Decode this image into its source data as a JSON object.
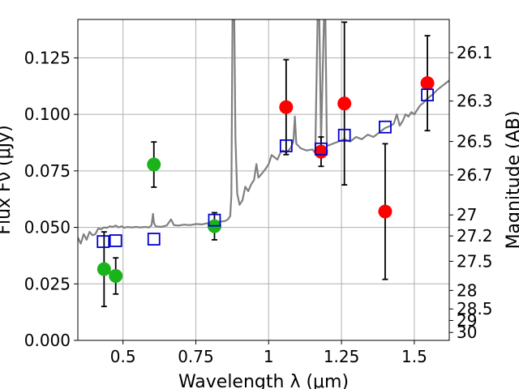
{
  "chart_data": {
    "type": "scatter",
    "title": "",
    "xlabel": "Wavelength  λ (μm)",
    "ylabel_left": "Flux  Fν (μJy)",
    "ylabel_right": "Magnitude (AB)",
    "xlim": [
      0.345,
      1.62
    ],
    "ylim": [
      0.0,
      0.142
    ],
    "grid": true,
    "x_ticks": [
      0.5,
      0.75,
      1.0,
      1.25,
      1.5
    ],
    "x_tick_labels": [
      "0.5",
      "0.75",
      "1",
      "1.25",
      "1.5"
    ],
    "y_ticks": [
      0.0,
      0.025,
      0.05,
      0.075,
      0.1,
      0.125
    ],
    "y_tick_labels": [
      "0.000",
      "0.025",
      "0.050",
      "0.075",
      "0.100",
      "0.125"
    ],
    "right_ticks": [
      {
        "label": "26.1",
        "flux": 0.1273
      },
      {
        "label": "26.3",
        "flux": 0.1059
      },
      {
        "label": "26.5",
        "flux": 0.088
      },
      {
        "label": "26.7",
        "flux": 0.0732
      },
      {
        "label": "27",
        "flux": 0.0555
      },
      {
        "label": "27.2",
        "flux": 0.0462
      },
      {
        "label": "27.5",
        "flux": 0.035
      },
      {
        "label": "28",
        "flux": 0.0221
      },
      {
        "label": "28.5",
        "flux": 0.0139
      },
      {
        "label": "29",
        "flux": 0.0088
      },
      {
        "label": "30",
        "flux": 0.0035
      }
    ],
    "colors": {
      "spectrum": "#808080",
      "green": "#1ab31a",
      "red": "#ff0000",
      "model": "#0000cc",
      "errorbar": "#000000",
      "grid": "#b0b0b0"
    },
    "series": [
      {
        "marker": "circle",
        "color": "#1ab31a",
        "points": [
          {
            "x": 0.435,
            "y": 0.0315,
            "yerr_low": 0.0165,
            "yerr_high": 0.0165
          },
          {
            "x": 0.475,
            "y": 0.0285,
            "yerr_low": 0.008,
            "yerr_high": 0.008
          },
          {
            "x": 0.606,
            "y": 0.0778,
            "yerr_low": 0.01,
            "yerr_high": 0.01
          },
          {
            "x": 0.814,
            "y": 0.0505,
            "yerr_low": 0.006,
            "yerr_high": 0.006
          }
        ]
      },
      {
        "marker": "circle",
        "color": "#ff0000",
        "points": [
          {
            "x": 1.06,
            "y": 0.1032,
            "yerr_low": 0.021,
            "yerr_high": 0.021
          },
          {
            "x": 1.18,
            "y": 0.0835,
            "yerr_low": 0.0065,
            "yerr_high": 0.0065
          },
          {
            "x": 1.26,
            "y": 0.1048,
            "yerr_low": 0.036,
            "yerr_high": 0.036
          },
          {
            "x": 1.4,
            "y": 0.057,
            "yerr_low": 0.03,
            "yerr_high": 0.03
          },
          {
            "x": 1.545,
            "y": 0.1138,
            "yerr_low": 0.021,
            "yerr_high": 0.021
          }
        ]
      },
      {
        "marker": "open-square",
        "color": "#0000cc",
        "points": [
          {
            "x": 0.432,
            "y": 0.0437
          },
          {
            "x": 0.475,
            "y": 0.0441
          },
          {
            "x": 0.606,
            "y": 0.0448
          },
          {
            "x": 0.814,
            "y": 0.0532
          },
          {
            "x": 1.06,
            "y": 0.0861
          },
          {
            "x": 1.18,
            "y": 0.0847
          },
          {
            "x": 1.26,
            "y": 0.0908
          },
          {
            "x": 1.4,
            "y": 0.0944
          },
          {
            "x": 1.545,
            "y": 0.1086
          }
        ]
      },
      {
        "marker": "line",
        "color": "#808080",
        "points": [
          [
            0.345,
            0.0455
          ],
          [
            0.355,
            0.0428
          ],
          [
            0.365,
            0.047
          ],
          [
            0.375,
            0.0445
          ],
          [
            0.385,
            0.048
          ],
          [
            0.395,
            0.0465
          ],
          [
            0.405,
            0.047
          ],
          [
            0.415,
            0.0495
          ],
          [
            0.425,
            0.0492
          ],
          [
            0.435,
            0.05
          ],
          [
            0.445,
            0.0498
          ],
          [
            0.455,
            0.0505
          ],
          [
            0.465,
            0.0502
          ],
          [
            0.475,
            0.0508
          ],
          [
            0.485,
            0.05
          ],
          [
            0.495,
            0.0505
          ],
          [
            0.505,
            0.0498
          ],
          [
            0.515,
            0.0502
          ],
          [
            0.53,
            0.05
          ],
          [
            0.545,
            0.0502
          ],
          [
            0.56,
            0.05
          ],
          [
            0.575,
            0.0502
          ],
          [
            0.59,
            0.05
          ],
          [
            0.598,
            0.051
          ],
          [
            0.603,
            0.056
          ],
          [
            0.606,
            0.052
          ],
          [
            0.612,
            0.0505
          ],
          [
            0.63,
            0.0502
          ],
          [
            0.65,
            0.0508
          ],
          [
            0.665,
            0.0535
          ],
          [
            0.675,
            0.051
          ],
          [
            0.69,
            0.0508
          ],
          [
            0.71,
            0.0512
          ],
          [
            0.73,
            0.051
          ],
          [
            0.75,
            0.0515
          ],
          [
            0.77,
            0.0513
          ],
          [
            0.79,
            0.0518
          ],
          [
            0.81,
            0.052
          ],
          [
            0.83,
            0.0525
          ],
          [
            0.85,
            0.0528
          ],
          [
            0.86,
            0.0535
          ],
          [
            0.868,
            0.055
          ],
          [
            0.872,
            0.064
          ],
          [
            0.876,
            0.142
          ],
          [
            0.882,
            0.142
          ],
          [
            0.886,
            0.09
          ],
          [
            0.892,
            0.065
          ],
          [
            0.9,
            0.06
          ],
          [
            0.91,
            0.062
          ],
          [
            0.92,
            0.068
          ],
          [
            0.93,
            0.066
          ],
          [
            0.94,
            0.069
          ],
          [
            0.95,
            0.071
          ],
          [
            0.958,
            0.078
          ],
          [
            0.965,
            0.072
          ],
          [
            0.975,
            0.0735
          ],
          [
            0.99,
            0.076
          ],
          [
            1.0,
            0.078
          ],
          [
            1.01,
            0.082
          ],
          [
            1.02,
            0.081
          ],
          [
            1.03,
            0.08
          ],
          [
            1.04,
            0.083
          ],
          [
            1.05,
            0.084
          ],
          [
            1.06,
            0.083
          ],
          [
            1.075,
            0.085
          ],
          [
            1.085,
            0.088
          ],
          [
            1.09,
            0.099
          ],
          [
            1.095,
            0.087
          ],
          [
            1.11,
            0.085
          ],
          [
            1.13,
            0.084
          ],
          [
            1.15,
            0.0845
          ],
          [
            1.16,
            0.083
          ],
          [
            1.168,
            0.142
          ],
          [
            1.174,
            0.142
          ],
          [
            1.18,
            0.088
          ],
          [
            1.19,
            0.142
          ],
          [
            1.195,
            0.142
          ],
          [
            1.2,
            0.086
          ],
          [
            1.22,
            0.087
          ],
          [
            1.24,
            0.088
          ],
          [
            1.26,
            0.089
          ],
          [
            1.28,
            0.088
          ],
          [
            1.3,
            0.09
          ],
          [
            1.32,
            0.089
          ],
          [
            1.34,
            0.091
          ],
          [
            1.36,
            0.09
          ],
          [
            1.38,
            0.092
          ],
          [
            1.4,
            0.094
          ],
          [
            1.42,
            0.095
          ],
          [
            1.43,
            0.096
          ],
          [
            1.44,
            0.1
          ],
          [
            1.45,
            0.095
          ],
          [
            1.46,
            0.097
          ],
          [
            1.47,
            0.1
          ],
          [
            1.48,
            0.099
          ],
          [
            1.49,
            0.101
          ],
          [
            1.5,
            0.1
          ],
          [
            1.51,
            0.102
          ],
          [
            1.52,
            0.104
          ],
          [
            1.53,
            0.105
          ],
          [
            1.545,
            0.107
          ],
          [
            1.555,
            0.108
          ],
          [
            1.565,
            0.109
          ],
          [
            1.58,
            0.111
          ],
          [
            1.6,
            0.113
          ],
          [
            1.62,
            0.115
          ]
        ]
      }
    ]
  }
}
